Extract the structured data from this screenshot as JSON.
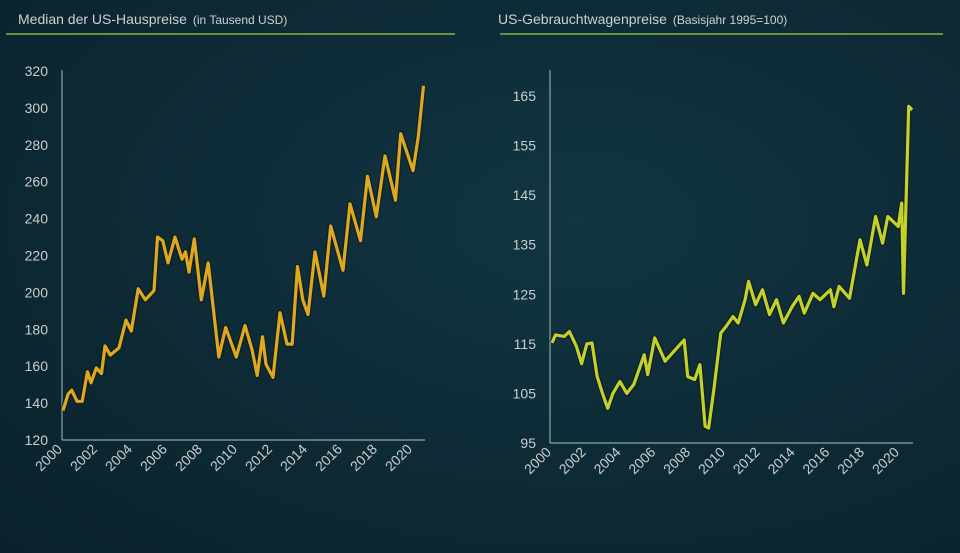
{
  "colors": {
    "background": "#0d2a35",
    "house_line": "#e0a820",
    "car_line": "#c5d12a",
    "title_rule": "#6b8f3b",
    "axis": "#8fa3a8"
  },
  "chart_data": [
    {
      "type": "line",
      "title": "Median der US-Hauspreise",
      "subtitle": "(in Tausend USD)",
      "xlabel": "",
      "ylabel": "",
      "xlim": [
        2000,
        2020.8
      ],
      "ylim": [
        120,
        320
      ],
      "yticks": [
        "120",
        "140",
        "160",
        "180",
        "200",
        "220",
        "240",
        "260",
        "280",
        "300",
        "320"
      ],
      "xticks": [
        "2000",
        "2002",
        "2004",
        "2006",
        "2008",
        "2010",
        "2012",
        "2014",
        "2016",
        "2018",
        "2020"
      ],
      "grid": false,
      "series": [
        {
          "x": [
            2000.0,
            2000.3,
            2000.5,
            2000.8,
            2001.1,
            2001.4,
            2001.6,
            2001.9,
            2002.2,
            2002.4,
            2002.7,
            2003.2,
            2003.6,
            2003.9,
            2004.3,
            2004.7,
            2005.2,
            2005.4,
            2005.7,
            2006.0,
            2006.4,
            2006.8,
            2007.0,
            2007.2,
            2007.5,
            2007.9,
            2008.3,
            2008.9,
            2009.3,
            2009.9,
            2010.4,
            2010.8,
            2011.1,
            2011.4,
            2011.6,
            2012.0,
            2012.4,
            2012.8,
            2013.1,
            2013.4,
            2013.7,
            2014.0,
            2014.4,
            2014.9,
            2015.3,
            2016.0,
            2016.4,
            2017.0,
            2017.4,
            2017.9,
            2018.4,
            2019.0,
            2019.3,
            2020.0,
            2020.3,
            2020.6
          ],
          "y": [
            136,
            145,
            147,
            141,
            141,
            157,
            151,
            159,
            156,
            171,
            166,
            170,
            185,
            179,
            202,
            196,
            201,
            230,
            228,
            216,
            230,
            218,
            222,
            211,
            229,
            196,
            216,
            165,
            181,
            165,
            182,
            169,
            155,
            176,
            161,
            154,
            189,
            172,
            172,
            214,
            196,
            188,
            222,
            198,
            236,
            212,
            248,
            228,
            263,
            241,
            274,
            250,
            286,
            266,
            284,
            312
          ]
        }
      ]
    },
    {
      "type": "line",
      "title": "US-Gebrauchtwagenpreise",
      "subtitle": "(Basisjahr 1995=100)",
      "xlabel": "",
      "ylabel": "",
      "xlim": [
        2000,
        2020.8
      ],
      "ylim": [
        95,
        165
      ],
      "yticks": [
        "95",
        "105",
        "115",
        "125",
        "135",
        "145",
        "155",
        "165"
      ],
      "xticks": [
        "2000",
        "2002",
        "2004",
        "2006",
        "2008",
        "2010",
        "2012",
        "2014",
        "2016",
        "2018",
        "2020"
      ],
      "grid": false,
      "series": [
        {
          "x": [
            2000.0,
            2000.2,
            2000.7,
            2001.0,
            2001.4,
            2001.7,
            2002.0,
            2002.3,
            2002.6,
            2002.9,
            2003.2,
            2003.5,
            2003.9,
            2004.3,
            2004.7,
            2005.3,
            2005.5,
            2005.9,
            2006.5,
            2006.9,
            2007.6,
            2007.8,
            2008.2,
            2008.5,
            2008.8,
            2009.0,
            2009.3,
            2009.7,
            2010.0,
            2010.4,
            2010.7,
            2011.1,
            2011.3,
            2011.7,
            2012.1,
            2012.5,
            2012.9,
            2013.3,
            2013.8,
            2014.2,
            2014.5,
            2015.0,
            2015.4,
            2016.0,
            2016.2,
            2016.5,
            2017.1,
            2017.7,
            2018.1,
            2018.6,
            2019.0,
            2019.3,
            2019.9,
            2020.1,
            2020.2,
            2020.5,
            2020.7
          ],
          "y": [
            115.2,
            116.8,
            116.5,
            117.5,
            114.5,
            111,
            115,
            115.2,
            108.4,
            105,
            102,
            105,
            107.4,
            105,
            106.8,
            112.8,
            108.8,
            116.2,
            111.5,
            113.1,
            115.8,
            108.4,
            107.8,
            110.8,
            98.4,
            98,
            105.7,
            117.2,
            118.5,
            120.5,
            119.2,
            123.9,
            127.6,
            122.9,
            125.9,
            120.9,
            123.9,
            119.2,
            122.5,
            124.6,
            121.2,
            125.2,
            123.9,
            125.9,
            122.5,
            126.6,
            124.2,
            136,
            130.9,
            140.7,
            135.3,
            140.7,
            138.7,
            143.4,
            125.2,
            162.9,
            162.2
          ]
        }
      ]
    }
  ]
}
